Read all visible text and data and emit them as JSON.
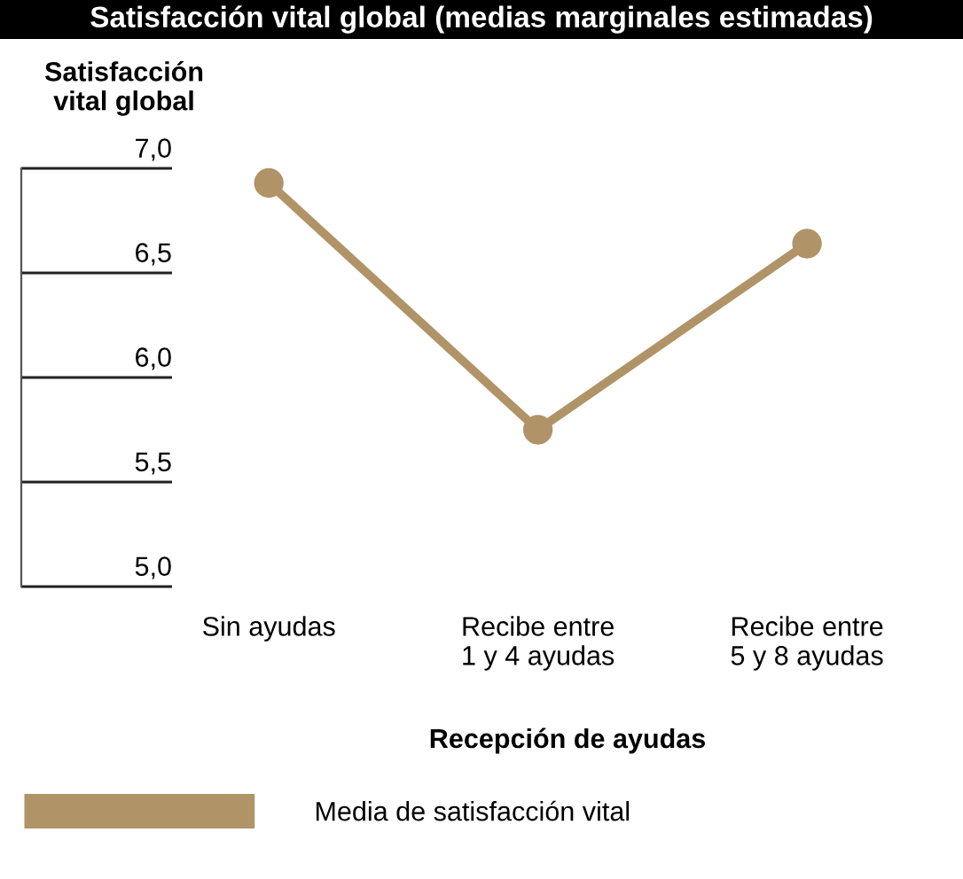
{
  "chart_data": {
    "type": "line",
    "title": "Satisfacción vital global (medias marginales estimadas)",
    "ylabel": "Satisfacción\nvital global",
    "xlabel": "Recepción de ayudas",
    "categories": [
      "Sin ayudas",
      "Recibe entre\n1 y 4 ayudas",
      "Recibe entre\n5 y 8 ayudas"
    ],
    "series": [
      {
        "name": "Media de satisfacción vital",
        "color": "#b09467",
        "values": [
          6.93,
          5.75,
          6.64
        ]
      }
    ],
    "ylim": [
      5.0,
      7.0
    ],
    "yticks": [
      {
        "value": 5.0,
        "label": "5,0"
      },
      {
        "value": 5.5,
        "label": "5,5"
      },
      {
        "value": 6.0,
        "label": "6,0"
      },
      {
        "value": 6.5,
        "label": "6,5"
      },
      {
        "value": 7.0,
        "label": "7,0"
      }
    ],
    "marker": "circle",
    "line_style": "solid",
    "legend": "bottom left",
    "grid": "y"
  }
}
